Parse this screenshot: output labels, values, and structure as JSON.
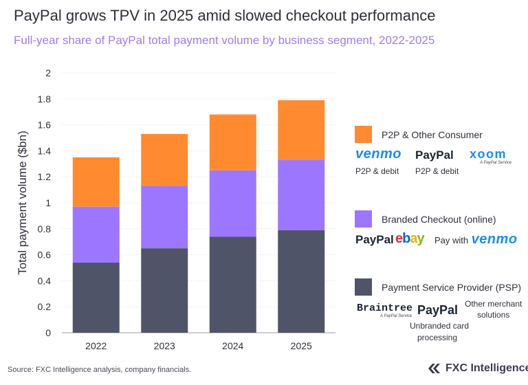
{
  "title": "PayPal grows TPV in 2025 amid slowed checkout performance",
  "subtitle": "Full-year share of PayPal total payment volume by business segment, 2022-2025",
  "source": "Source: FXC Intelligence analysis, company financials.",
  "brand_name": "FXC Intelligence",
  "colors": {
    "psp": "#4f5468",
    "checkout": "#9d76ff",
    "p2p": "#ff8a30"
  },
  "chart_data": {
    "type": "bar",
    "stacked": true,
    "categories": [
      "2022",
      "2023",
      "2024",
      "2025"
    ],
    "series": [
      {
        "name": "Payment Service Provider (PSP)",
        "values": [
          0.54,
          0.65,
          0.74,
          0.79
        ],
        "color": "#4f5468"
      },
      {
        "name": "Branded Checkout (online)",
        "values": [
          0.43,
          0.48,
          0.51,
          0.54
        ],
        "color": "#9d76ff"
      },
      {
        "name": "P2P & Other Consumer",
        "values": [
          0.38,
          0.4,
          0.43,
          0.46
        ],
        "color": "#ff8a30"
      }
    ],
    "ylabel": "Total payment volume ($bn)",
    "ylim": [
      0,
      2
    ],
    "yticks": [
      "0",
      "0.2",
      "0.4",
      "0.6",
      "0.8",
      "1",
      "1.2",
      "1.4",
      "1.6",
      "1.8",
      "2"
    ],
    "grid": true,
    "legend_position": "right"
  },
  "legend": {
    "p2p": {
      "label": "P2P & Other Consumer",
      "venmo": "venmo",
      "paypal": "PayPal",
      "xoom": "xoom",
      "xoom_sub": "A PayPal Service",
      "venmo_caption": "P2P & debit",
      "paypal_caption": "P2P & debit"
    },
    "checkout": {
      "label": "Branded Checkout (online)",
      "paypal": "PayPal",
      "ebay": [
        "e",
        "b",
        "a",
        "y"
      ],
      "pay_with": "Pay with",
      "venmo": "venmo"
    },
    "psp": {
      "label": "Payment Service Provider (PSP)",
      "braintree": "Braintree",
      "braintree_sub": "A PayPal Service",
      "paypal": "PayPal",
      "paypal_caption_1": "Unbranded card",
      "paypal_caption_2": "processing",
      "other_1": "Other merchant",
      "other_2": "solutions"
    }
  }
}
